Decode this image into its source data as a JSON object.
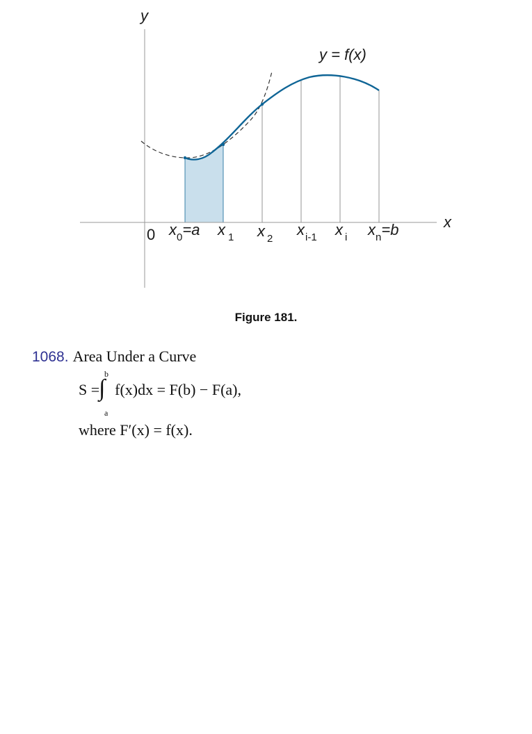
{
  "figure": {
    "axis_y_label": "y",
    "axis_x_label": "x",
    "origin_label": "0",
    "curve_label": "y = f(x)",
    "ticks": [
      {
        "base": "x",
        "sub": "0",
        "suffix": "=a"
      },
      {
        "base": "x",
        "sub": "1",
        "suffix": ""
      },
      {
        "base": "x",
        "sub": "2",
        "suffix": ""
      },
      {
        "base": "x",
        "sub": "i-1",
        "suffix": ""
      },
      {
        "base": "x",
        "sub": "i",
        "suffix": ""
      },
      {
        "base": "x",
        "sub": "n",
        "suffix": "=b"
      }
    ],
    "curve_color": "#0f6596",
    "shade_color": "#c9dfec"
  },
  "caption": "Figure 181.",
  "section": {
    "number": "1068.",
    "title": "Area Under a Curve"
  },
  "formula": {
    "integral_upper": "b",
    "integral_lower": "a",
    "lhs": "S =",
    "rhs": "f(x)dx = F(b) − F(a),",
    "where": "where  F′(x) = f(x)."
  }
}
